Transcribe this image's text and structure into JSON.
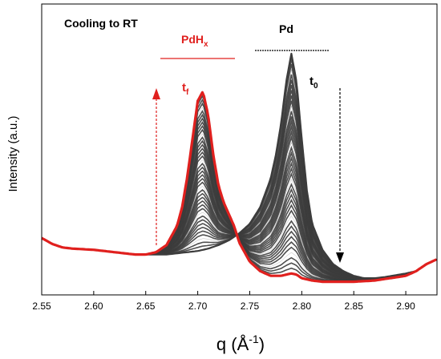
{
  "chart_data": {
    "type": "line",
    "title": "",
    "xlabel": "q (Å^-1)",
    "xlabel_main": "q",
    "xlabel_unit": "Å",
    "xlabel_exp": "-1",
    "ylabel": "Intensity (a.u.)",
    "xlim": [
      2.55,
      2.93
    ],
    "x_ticks": [
      2.55,
      2.6,
      2.65,
      2.7,
      2.75,
      2.8,
      2.85,
      2.9
    ],
    "x_tick_labels": [
      "2.55",
      "2.60",
      "2.65",
      "2.70",
      "2.75",
      "2.80",
      "2.85",
      "2.90"
    ],
    "grid": false,
    "colors": {
      "pd_curve": "#3c3c3c",
      "final_curve": "#e0201e",
      "arrow_red": "#e0201e",
      "arrow_black": "#000000"
    },
    "series": [
      {
        "name": "t0",
        "points": [
          [
            2.55,
            0.2
          ],
          [
            2.56,
            0.175
          ],
          [
            2.57,
            0.16
          ],
          [
            2.58,
            0.155
          ],
          [
            2.6,
            0.15
          ],
          [
            2.62,
            0.14
          ],
          [
            2.64,
            0.13
          ],
          [
            2.65,
            0.13
          ],
          [
            2.66,
            0.13
          ],
          [
            2.67,
            0.13
          ],
          [
            2.68,
            0.135
          ],
          [
            2.69,
            0.14
          ],
          [
            2.7,
            0.145
          ],
          [
            2.71,
            0.155
          ],
          [
            2.72,
            0.17
          ],
          [
            2.73,
            0.19
          ],
          [
            2.74,
            0.22
          ],
          [
            2.75,
            0.26
          ],
          [
            2.76,
            0.33
          ],
          [
            2.77,
            0.45
          ],
          [
            2.775,
            0.55
          ],
          [
            2.78,
            0.68
          ],
          [
            2.785,
            0.86
          ],
          [
            2.79,
            0.98
          ],
          [
            2.795,
            0.86
          ],
          [
            2.8,
            0.62
          ],
          [
            2.805,
            0.4
          ],
          [
            2.81,
            0.26
          ],
          [
            2.82,
            0.15
          ],
          [
            2.83,
            0.09
          ],
          [
            2.84,
            0.06
          ],
          [
            2.85,
            0.04
          ],
          [
            2.86,
            0.03
          ],
          [
            2.87,
            0.03
          ],
          [
            2.88,
            0.035
          ],
          [
            2.9,
            0.05
          ],
          [
            2.91,
            0.06
          ],
          [
            2.92,
            0.09
          ],
          [
            2.93,
            0.11
          ]
        ]
      },
      {
        "name": "tf",
        "points": [
          [
            2.55,
            0.2
          ],
          [
            2.56,
            0.175
          ],
          [
            2.57,
            0.16
          ],
          [
            2.58,
            0.155
          ],
          [
            2.6,
            0.15
          ],
          [
            2.62,
            0.14
          ],
          [
            2.64,
            0.13
          ],
          [
            2.65,
            0.13
          ],
          [
            2.66,
            0.14
          ],
          [
            2.67,
            0.17
          ],
          [
            2.68,
            0.25
          ],
          [
            2.685,
            0.33
          ],
          [
            2.69,
            0.46
          ],
          [
            2.695,
            0.62
          ],
          [
            2.7,
            0.78
          ],
          [
            2.705,
            0.82
          ],
          [
            2.71,
            0.72
          ],
          [
            2.715,
            0.55
          ],
          [
            2.72,
            0.42
          ],
          [
            2.725,
            0.35
          ],
          [
            2.73,
            0.3
          ],
          [
            2.735,
            0.25
          ],
          [
            2.74,
            0.18
          ],
          [
            2.75,
            0.1
          ],
          [
            2.76,
            0.06
          ],
          [
            2.77,
            0.04
          ],
          [
            2.78,
            0.04
          ],
          [
            2.785,
            0.045
          ],
          [
            2.79,
            0.05
          ],
          [
            2.795,
            0.045
          ],
          [
            2.8,
            0.03
          ],
          [
            2.81,
            0.02
          ],
          [
            2.82,
            0.015
          ],
          [
            2.83,
            0.015
          ],
          [
            2.85,
            0.015
          ],
          [
            2.87,
            0.02
          ],
          [
            2.9,
            0.04
          ],
          [
            2.91,
            0.06
          ],
          [
            2.92,
            0.09
          ],
          [
            2.93,
            0.11
          ]
        ]
      }
    ],
    "annotations": {
      "title": "Cooling to RT",
      "pdhx_main": "PdH",
      "pdhx_sub": "x",
      "pd": "Pd",
      "tf_main": "t",
      "tf_sub": "f",
      "t0_main": "t",
      "t0_sub": "0"
    }
  }
}
